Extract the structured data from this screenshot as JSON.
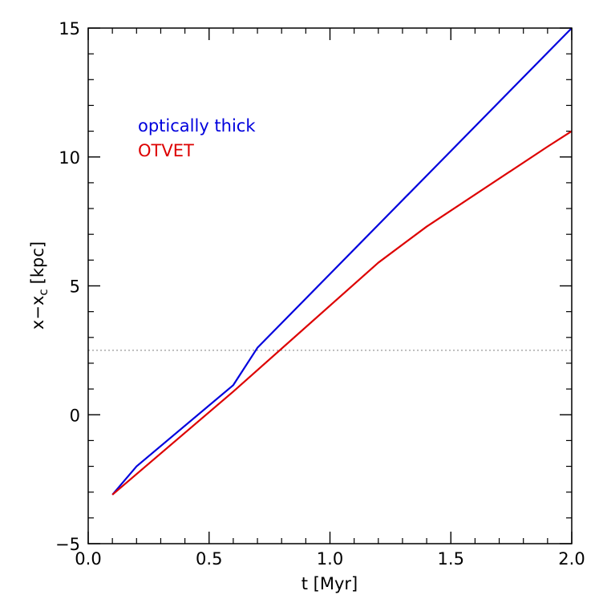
{
  "chart_data": {
    "type": "line",
    "title": "",
    "xlabel": "t [Myr]",
    "ylabel": {
      "base": "x",
      "minus": "−",
      "var": "x",
      "sub": "c",
      "unit": "[kpc]"
    },
    "xlim": [
      0.0,
      2.0
    ],
    "ylim": [
      -5,
      15
    ],
    "xticks": [
      0.0,
      0.5,
      1.0,
      1.5,
      2.0
    ],
    "xtick_labels": [
      "0.0",
      "0.5",
      "1.0",
      "1.5",
      "2.0"
    ],
    "yticks": [
      -5,
      0,
      5,
      10,
      15
    ],
    "ytick_labels": [
      "−5",
      "0",
      "5",
      "10",
      "15"
    ],
    "x_minor_step": 0.1,
    "y_minor_step": 1,
    "grid": false,
    "legend_position": "upper-left",
    "reference_line": {
      "y": 2.5,
      "color": "#999999",
      "style": "dotted"
    },
    "series": [
      {
        "name": "optically thick",
        "color": "#0000dd",
        "x": [
          0.1,
          0.2,
          0.6,
          0.7,
          2.0
        ],
        "y": [
          -3.1,
          -2.0,
          1.15,
          2.6,
          15.2
        ]
      },
      {
        "name": "OTVET",
        "color": "#dd0000",
        "x": [
          0.1,
          0.6,
          1.2,
          1.4,
          1.9,
          2.0
        ],
        "y": [
          -3.1,
          0.9,
          5.9,
          7.3,
          10.4,
          11.0
        ]
      }
    ]
  }
}
